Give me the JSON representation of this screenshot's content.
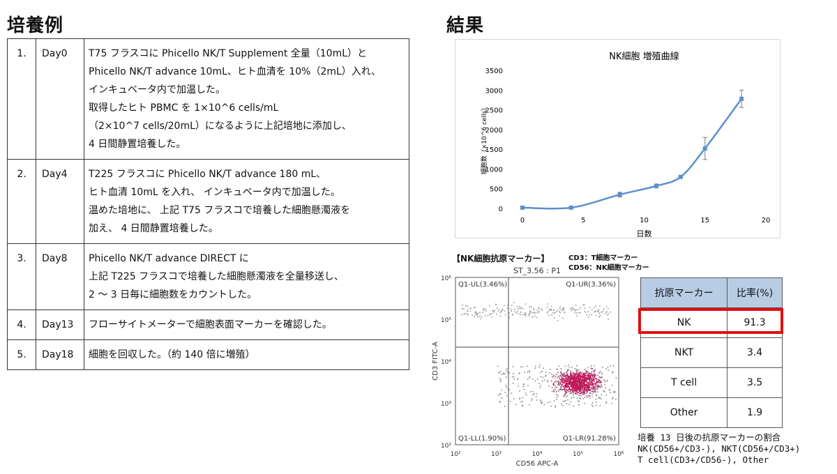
{
  "left": {
    "title": "培養例",
    "rows": [
      {
        "num": "1.",
        "day": "Day0",
        "lines": [
          "T75 フラスコに Phicello NK/T Supplement 全量（10mL）と",
          "Phicello NK/T advance 10mL、ヒト血清を 10%（2mL）入れ、",
          "インキュベータ内で加温した。",
          "取得したヒト PBMC を 1×10^6 cells/mL",
          "（2×10^7 cells/20mL）になるように上記培地に添加し、",
          "4 日間静置培養した。"
        ]
      },
      {
        "num": "2.",
        "day": "Day4",
        "lines": [
          "T225 フラスコに Phicello NK/T advance 180 mL、",
          "ヒト血清 10mL を入れ、 インキュベータ内で加温した。",
          "温めた培地に、 上記 T75 フラスコで培養した細胞懸濁液を",
          "加え、 4 日間静置培養した。"
        ]
      },
      {
        "num": "3.",
        "day": "Day8",
        "lines": [
          "Phicello NK/T advance DIRECT に",
          "上記 T225 フラスコで培養した細胞懸濁液を全量移送し、",
          "2 ～ 3 日毎に細胞数をカウントした。"
        ]
      },
      {
        "num": "4.",
        "day": "Day13",
        "lines": [
          "フローサイトメーターで細胞表面マーカーを確認した。"
        ]
      },
      {
        "num": "5.",
        "day": "Day18",
        "lines": [
          "細胞を回収した。（約 140 倍に増殖）"
        ]
      }
    ]
  },
  "right": {
    "title": "結果",
    "growth_chart_data": {
      "type": "line",
      "title": "NK細胞 増殖曲線",
      "xlabel": "日数",
      "ylabel": "細胞数（×10^6 cells）",
      "xlim": [
        0,
        20
      ],
      "ylim": [
        0,
        3500
      ],
      "xticks": [
        "0",
        "5",
        "10",
        "15",
        "20"
      ],
      "yticks": [
        "0",
        "500",
        "1000",
        "1500",
        "2000",
        "2500",
        "3000",
        "3500"
      ],
      "x": [
        0,
        4,
        8,
        11,
        13,
        15,
        18
      ],
      "y": [
        20,
        20,
        350,
        570,
        800,
        1520,
        2780
      ],
      "err": [
        0,
        0,
        60,
        50,
        20,
        280,
        220
      ],
      "color": "#5b8fd0"
    },
    "flow": {
      "heading": "【NK細胞抗原マーカー】",
      "note1": "CD3：T細胞マーカー",
      "note2": "CD56：NK細胞マーカー",
      "plot_title": "ST_3.56 : P1",
      "q_ul": "Q1-UL(3.46%)",
      "q_ur": "Q1-UR(3.36%)",
      "q_ll": "Q1-LL(1.90%)",
      "q_lr": "Q1-LR(91.28%)",
      "xlabel": "CD56 APC-A",
      "ylabel": "CD3 FITC-A",
      "xticks": [
        "10²",
        "10³",
        "10⁴",
        "10⁵",
        "10⁶"
      ],
      "yticks": [
        "10⁶",
        "10⁵",
        "10⁴",
        "10³",
        "10²"
      ]
    },
    "markers_table": {
      "header_marker": "抗原マーカー",
      "header_ratio": "比率(%)",
      "rows": [
        {
          "marker": "NK",
          "ratio": "91.3"
        },
        {
          "marker": "NKT",
          "ratio": "3.4"
        },
        {
          "marker": "T cell",
          "ratio": "3.5"
        },
        {
          "marker": "Other",
          "ratio": "1.9"
        }
      ],
      "highlight_color": "#e01010"
    },
    "caption": {
      "line1": "培養 13 日後の抗原マーカーの割合",
      "line2": "NK(CD56+/CD3-), NKT(CD56+/CD3+)",
      "line3": "T cell(CD3+/CD56-), Other"
    }
  }
}
